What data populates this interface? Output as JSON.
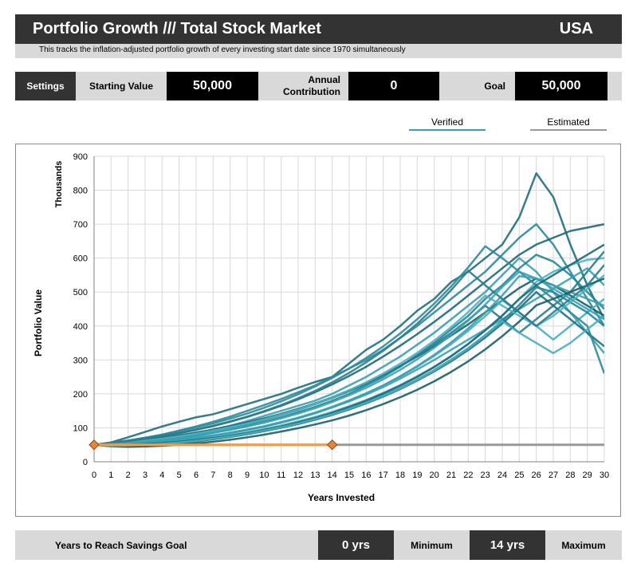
{
  "header": {
    "title": "Portfolio Growth /// Total Stock Market",
    "country": "USA",
    "subtitle": "This tracks the inflation-adjusted portfolio growth of every investing start date since 1970 simultaneously"
  },
  "controls": {
    "settings_label": "Settings",
    "starting_value_label": "Starting Value",
    "starting_value": "50,000",
    "annual_contribution_label": "Annual Contribution",
    "annual_contribution": "0",
    "goal_label": "Goal",
    "goal": "50,000"
  },
  "legend": {
    "verified": "Verified",
    "estimated": "Estimated"
  },
  "colors": {
    "header_bg": "#333333",
    "light_gray": "#d9d9d9",
    "verified_line": "#2e8b9a",
    "estimated_line": "#999999",
    "goal_line": "#f39c4a",
    "marker": "#e8843a"
  },
  "footer": {
    "label": "Years to Reach Savings Goal",
    "minimum_value": "0 yrs",
    "minimum_label": "Minimum",
    "maximum_value": "14 yrs",
    "maximum_label": "Maximum"
  },
  "chart_data": {
    "type": "line",
    "xlabel": "Years Invested",
    "ylabel": "Portfolio Value",
    "yunit_label": "Thousands",
    "xlim": [
      0,
      30
    ],
    "ylim": [
      0,
      900
    ],
    "x_ticks": [
      0,
      1,
      2,
      3,
      4,
      5,
      6,
      7,
      8,
      9,
      10,
      11,
      12,
      13,
      14,
      15,
      16,
      17,
      18,
      19,
      20,
      21,
      22,
      23,
      24,
      25,
      26,
      27,
      28,
      29,
      30
    ],
    "y_ticks": [
      0,
      100,
      200,
      300,
      400,
      500,
      600,
      700,
      800,
      900
    ],
    "grid": true,
    "goal": {
      "value": 50,
      "start": 0,
      "end": 30,
      "markers": [
        0,
        14
      ]
    },
    "series": [
      {
        "values": [
          50,
          57,
          72,
          88,
          104,
          118,
          131,
          140,
          155,
          170,
          185,
          200,
          218,
          235,
          250,
          290,
          330,
          360,
          400,
          445,
          480,
          530,
          560,
          600,
          640,
          720,
          850,
          780,
          640,
          520,
          420
        ]
      },
      {
        "values": [
          50,
          55,
          62,
          70,
          80,
          92,
          104,
          118,
          133,
          150,
          167,
          185,
          205,
          225,
          250,
          275,
          300,
          330,
          365,
          400,
          440,
          480,
          520,
          560,
          610,
          660,
          700,
          640,
          560,
          480,
          400
        ]
      },
      {
        "values": [
          50,
          48,
          52,
          58,
          66,
          75,
          84,
          95,
          106,
          120,
          135,
          150,
          165,
          180,
          200,
          225,
          250,
          280,
          310,
          345,
          380,
          420,
          460,
          500,
          550,
          600,
          560,
          500,
          440,
          380,
          320
        ]
      },
      {
        "values": [
          50,
          46,
          50,
          55,
          61,
          68,
          76,
          85,
          95,
          106,
          118,
          131,
          146,
          162,
          180,
          200,
          225,
          250,
          280,
          315,
          350,
          390,
          430,
          480,
          520,
          570,
          610,
          590,
          550,
          500,
          450
        ]
      },
      {
        "values": [
          50,
          45,
          44,
          47,
          52,
          57,
          63,
          70,
          78,
          86,
          96,
          107,
          119,
          132,
          147,
          164,
          182,
          203,
          226,
          252,
          280,
          312,
          348,
          388,
          430,
          480,
          530,
          560,
          580,
          595,
          600
        ]
      },
      {
        "values": [
          50,
          53,
          58,
          64,
          70,
          78,
          86,
          95,
          105,
          116,
          128,
          141,
          156,
          172,
          190,
          210,
          232,
          256,
          282,
          310,
          340,
          372,
          405,
          440,
          476,
          512,
          540,
          520,
          490,
          460,
          430
        ]
      },
      {
        "values": [
          50,
          52,
          56,
          61,
          67,
          74,
          82,
          91,
          101,
          112,
          124,
          138,
          153,
          170,
          188,
          208,
          230,
          255,
          282,
          312,
          345,
          380,
          418,
          460,
          420,
          380,
          420,
          460,
          500,
          560,
          620
        ]
      },
      {
        "values": [
          50,
          49,
          51,
          54,
          58,
          63,
          69,
          76,
          84,
          93,
          103,
          115,
          128,
          143,
          160,
          178,
          198,
          220,
          245,
          272,
          300,
          330,
          360,
          390,
          420,
          450,
          480,
          510,
          540,
          570,
          520
        ]
      },
      {
        "values": [
          50,
          54,
          60,
          67,
          75,
          84,
          94,
          105,
          118,
          132,
          148,
          165,
          184,
          205,
          228,
          253,
          280,
          310,
          342,
          376,
          412,
          450,
          490,
          530,
          570,
          610,
          640,
          660,
          680,
          690,
          700
        ]
      },
      {
        "values": [
          50,
          51,
          53,
          56,
          60,
          65,
          71,
          78,
          86,
          95,
          105,
          117,
          130,
          145,
          162,
          181,
          202,
          225,
          251,
          280,
          312,
          347,
          386,
          429,
          476,
          440,
          400,
          360,
          400,
          440,
          480
        ]
      },
      {
        "values": [
          50,
          47,
          46,
          48,
          51,
          55,
          60,
          66,
          73,
          81,
          90,
          100,
          111,
          124,
          138,
          154,
          172,
          192,
          214,
          239,
          266,
          296,
          329,
          366,
          407,
          452,
          500,
          460,
          420,
          380,
          340
        ]
      },
      {
        "values": [
          50,
          56,
          63,
          71,
          80,
          90,
          101,
          113,
          127,
          142,
          159,
          178,
          199,
          222,
          247,
          275,
          306,
          340,
          378,
          420,
          466,
          517,
          573,
          635,
          600,
          560,
          520,
          480,
          440,
          400,
          260
        ]
      },
      {
        "values": [
          50,
          50,
          52,
          55,
          59,
          64,
          70,
          77,
          85,
          94,
          104,
          116,
          129,
          144,
          161,
          180,
          201,
          225,
          252,
          282,
          315,
          352,
          393,
          439,
          490,
          547,
          540,
          520,
          500,
          480,
          460
        ]
      },
      {
        "values": [
          50,
          48,
          49,
          51,
          54,
          58,
          63,
          69,
          76,
          84,
          93,
          103,
          114,
          127,
          141,
          157,
          175,
          195,
          217,
          242,
          270,
          301,
          335,
          373,
          415,
          462,
          514,
          500,
          470,
          440,
          400
        ]
      },
      {
        "values": [
          50,
          53,
          57,
          62,
          68,
          75,
          83,
          92,
          102,
          113,
          125,
          139,
          154,
          171,
          190,
          211,
          234,
          260,
          289,
          321,
          357,
          397,
          441,
          490,
          460,
          430,
          400,
          430,
          470,
          510,
          550
        ]
      },
      {
        "values": [
          50,
          46,
          44,
          45,
          47,
          50,
          54,
          59,
          65,
          72,
          80,
          89,
          99,
          110,
          122,
          136,
          152,
          170,
          190,
          212,
          237,
          265,
          296,
          331,
          370,
          413,
          461,
          480,
          500,
          520,
          540
        ]
      },
      {
        "values": [
          50,
          55,
          61,
          68,
          76,
          85,
          95,
          106,
          119,
          133,
          149,
          167,
          187,
          209,
          234,
          262,
          293,
          327,
          365,
          407,
          454,
          506,
          563,
          520,
          480,
          440,
          400,
          440,
          480,
          520,
          580
        ]
      },
      {
        "values": [
          50,
          52,
          55,
          59,
          64,
          70,
          77,
          85,
          94,
          104,
          115,
          128,
          142,
          158,
          176,
          196,
          218,
          243,
          271,
          302,
          336,
          374,
          416,
          463,
          515,
          560,
          540,
          510,
          480,
          450,
          420
        ]
      },
      {
        "values": [
          50,
          49,
          50,
          52,
          55,
          59,
          64,
          70,
          77,
          85,
          94,
          104,
          116,
          129,
          144,
          161,
          180,
          201,
          224,
          250,
          279,
          311,
          347,
          387,
          431,
          480,
          520,
          550,
          580,
          610,
          640
        ]
      },
      {
        "values": [
          50,
          47,
          48,
          50,
          53,
          57,
          62,
          68,
          75,
          83,
          92,
          102,
          113,
          126,
          140,
          156,
          174,
          194,
          216,
          241,
          269,
          300,
          334,
          372,
          414,
          380,
          350,
          320,
          350,
          390,
          430
        ]
      }
    ]
  }
}
